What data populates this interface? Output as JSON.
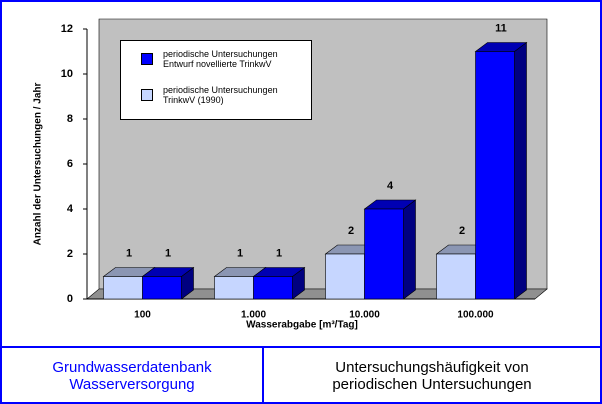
{
  "chart_data": {
    "type": "bar3d",
    "y_label": "Anzahl der Untersuchungen / Jahr",
    "x_label": "Wasserabgabe [m³/Tag]",
    "categories": [
      "100",
      "1.000",
      "10.000",
      "100.000"
    ],
    "series": [
      {
        "name": "periodische Untersuchungen Entwurf novellierte TrinkwV",
        "color": "#0000ff",
        "values": [
          1,
          1,
          4,
          11
        ]
      },
      {
        "name": "periodische Untersuchungen TrinkwV (1990)",
        "color": "#c6d6ff",
        "values": [
          1,
          1,
          2,
          2
        ]
      }
    ],
    "ylim": [
      0,
      12
    ],
    "yticks": [
      0,
      2,
      4,
      6,
      8,
      10,
      12
    ],
    "grid": false
  },
  "footer": {
    "left": "Grundwasserdatenbank Wasserversorgung",
    "right": "Untersuchungshäufigkeit von periodischen Untersuchungen"
  }
}
